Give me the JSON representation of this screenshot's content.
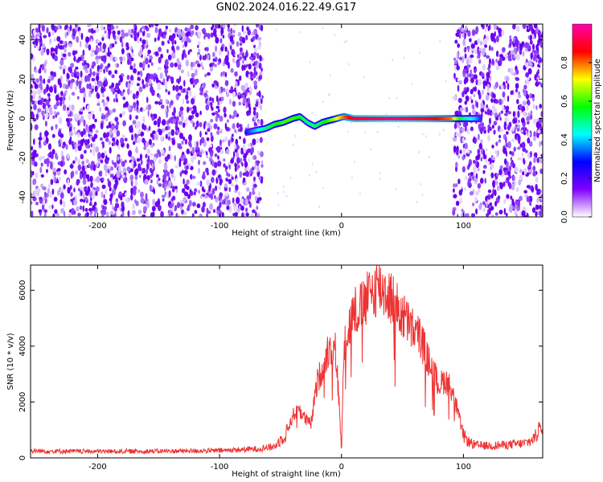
{
  "title": "GN02.2024.016.22.49.G17",
  "colors": {
    "snr_line": "#ee3333",
    "scatter": "#6a00f0",
    "frame": "#000000"
  },
  "chart_data": [
    {
      "type": "heatmap",
      "xlabel": "Height of straight line (km)",
      "ylabel": "Frequency (Hz)",
      "xlim": [
        -255,
        165
      ],
      "ylim": [
        -50,
        48
      ],
      "x_ticks": [
        -200,
        -100,
        0,
        100
      ],
      "y_ticks": [
        -40,
        -20,
        0,
        20,
        40
      ],
      "colorbar": {
        "label": "Normalized spectral amplitude",
        "range": [
          0,
          1
        ],
        "ticks": [
          "0.0",
          "0.2",
          "0.4",
          "0.6",
          "0.8"
        ],
        "tick_values": [
          0,
          0.2,
          0.4,
          0.6,
          0.8
        ],
        "colormap": [
          "#ffffff",
          "#7f00ff",
          "#0000ff",
          "#00ffff",
          "#00ff00",
          "#ffff00",
          "#ff0000",
          "#ff00aa"
        ]
      },
      "noise_regions_km": [
        [
          -255,
          -65
        ],
        [
          92,
          165
        ]
      ],
      "ridge": {
        "x": [
          -78,
          -70,
          -62,
          -55,
          -48,
          -40,
          -34,
          -28,
          -22,
          -16,
          -10,
          -4,
          2,
          10,
          40,
          70,
          90,
          100,
          110,
          115
        ],
        "y": [
          -7,
          -6,
          -5,
          -3,
          -2,
          0,
          1,
          -2,
          -4,
          -2,
          -1,
          0,
          1,
          0,
          0,
          0,
          0,
          0,
          0,
          0
        ],
        "amplitude": [
          0.3,
          0.4,
          0.5,
          0.55,
          0.6,
          0.6,
          0.55,
          0.5,
          0.5,
          0.55,
          0.6,
          0.7,
          0.8,
          0.9,
          0.95,
          0.9,
          0.8,
          0.5,
          0.4,
          0.3
        ]
      }
    },
    {
      "type": "line",
      "xlabel": "Height of straight line (km)",
      "ylabel": "SNR (10 * v/v)",
      "xlim": [
        -255,
        165
      ],
      "ylim": [
        0,
        6900
      ],
      "x_ticks": [
        -200,
        -100,
        0,
        100
      ],
      "y_ticks": [
        0,
        2000,
        4000,
        6000
      ],
      "series": [
        {
          "x": [
            -255,
            -200,
            -150,
            -100,
            -70,
            -55,
            -45,
            -40,
            -35,
            -30,
            -25,
            -20,
            -15,
            -10,
            -5,
            -2,
            0,
            2,
            5,
            10,
            15,
            20,
            25,
            30,
            35,
            40,
            45,
            50,
            55,
            60,
            65,
            70,
            75,
            80,
            85,
            90,
            95,
            100,
            105,
            110,
            120,
            130,
            140,
            150,
            155,
            160,
            163,
            165
          ],
          "y": [
            250,
            230,
            240,
            260,
            320,
            400,
            900,
            1500,
            1800,
            1400,
            1200,
            2700,
            3300,
            4000,
            3900,
            2000,
            200,
            4200,
            4500,
            5300,
            5300,
            5600,
            5900,
            6200,
            6000,
            5800,
            5400,
            5100,
            4800,
            4500,
            4300,
            3600,
            3100,
            2600,
            2800,
            2500,
            1700,
            800,
            550,
            450,
            430,
            450,
            480,
            520,
            600,
            800,
            1300,
            800
          ],
          "color": "#ee3333"
        }
      ]
    }
  ]
}
